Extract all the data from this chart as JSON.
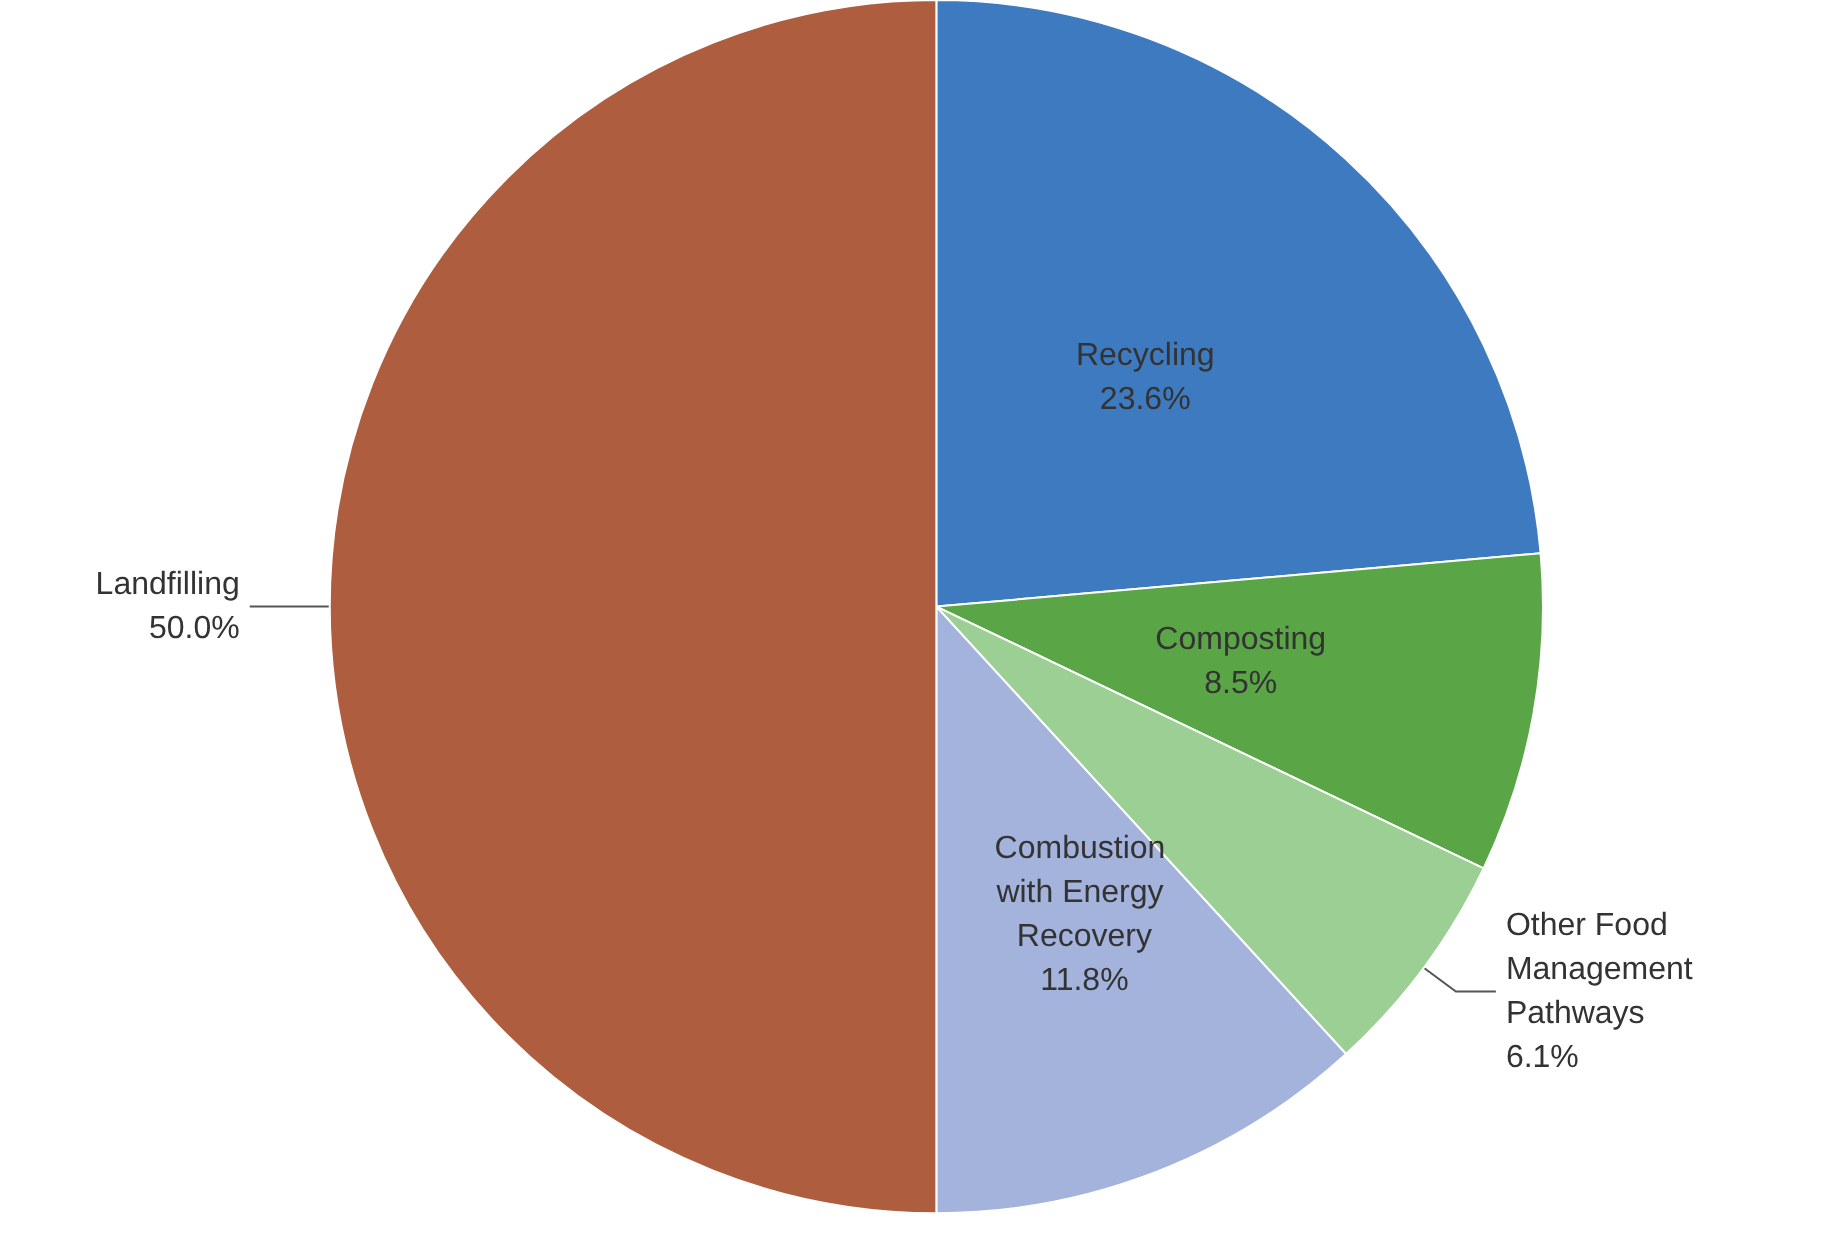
{
  "chart_data": {
    "type": "pie",
    "categories": [
      "Recycling",
      "Composting",
      "Other Food Management Pathways",
      "Combustion with Energy Recovery",
      "Landfilling"
    ],
    "values": [
      23.6,
      8.5,
      6.1,
      11.8,
      50.0
    ],
    "value_labels": [
      "23.6%",
      "8.5%",
      "6.1%",
      "11.8%",
      "50.0%"
    ],
    "colors": [
      "#3d7abf",
      "#5aa545",
      "#9ccf94",
      "#a3b3dc",
      "#ae5e3e"
    ],
    "legend": false
  }
}
